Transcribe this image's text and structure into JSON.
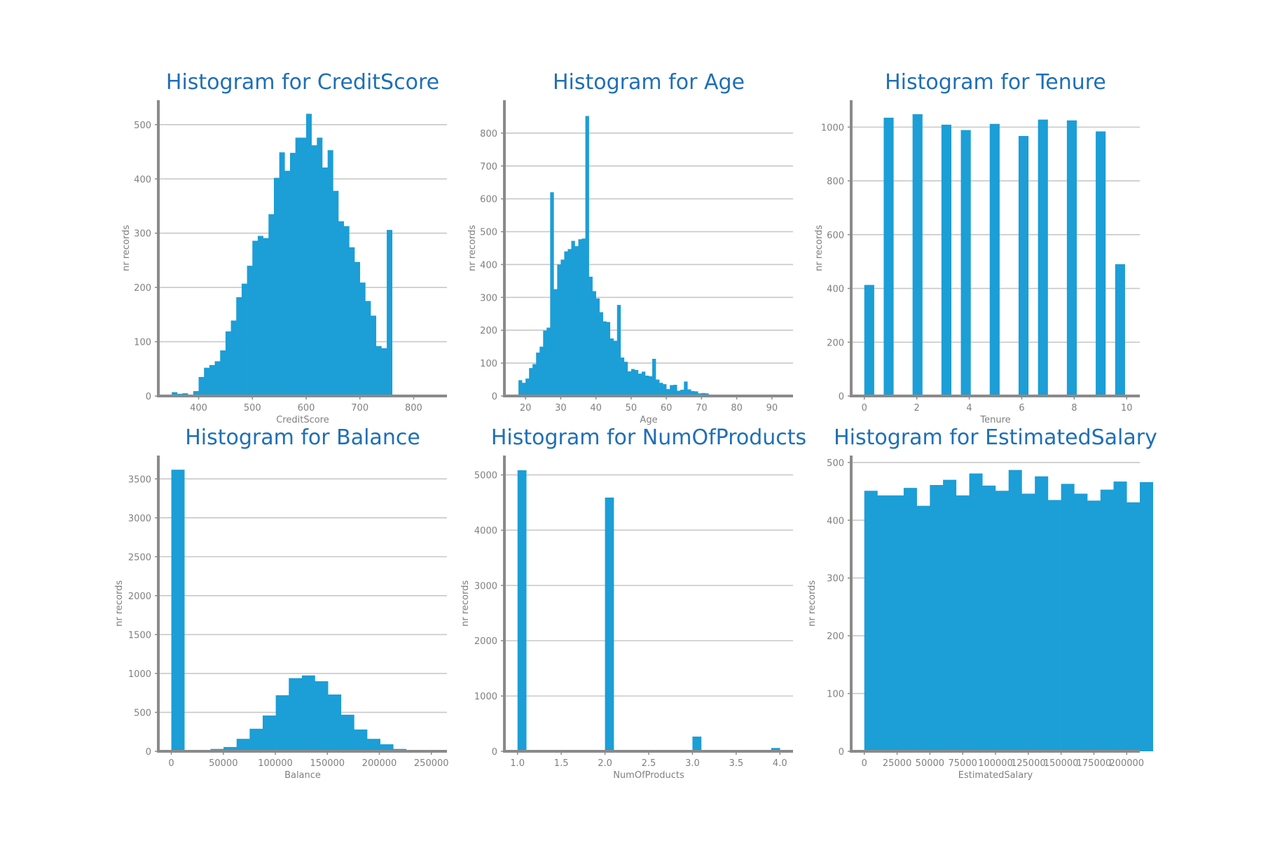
{
  "colors": {
    "bar": "#1c9ed6",
    "title": "#1f6fb6",
    "grid": "#c8c8c8",
    "axis": "#8a8a8a",
    "tick_text": "#808080"
  },
  "chart_data": [
    {
      "type": "bar",
      "title": "Histogram for CreditScore",
      "xlabel": "CreditScore",
      "ylabel": "nr records",
      "xlim": [
        325,
        862
      ],
      "ylim": [
        0,
        545
      ],
      "xticks": [
        400,
        500,
        600,
        700,
        800
      ],
      "yticks": [
        0,
        100,
        200,
        300,
        400,
        500
      ],
      "bins": {
        "start": 350,
        "width": 10,
        "values": [
          7,
          4,
          5,
          2,
          9,
          35,
          52,
          57,
          64,
          84,
          119,
          139,
          182,
          207,
          240,
          286,
          295,
          291,
          335,
          402,
          449,
          415,
          448,
          476,
          476,
          520,
          462,
          476,
          421,
          453,
          378,
          322,
          313,
          274,
          247,
          209,
          175,
          148,
          92,
          88,
          306
        ]
      },
      "grid": true
    },
    {
      "type": "bar",
      "title": "Histogram for Age",
      "xlabel": "Age",
      "ylabel": "nr records",
      "xlim": [
        14,
        96
      ],
      "ylim": [
        0,
        900
      ],
      "xticks": [
        20,
        30,
        40,
        50,
        60,
        70,
        80,
        90
      ],
      "yticks": [
        0,
        100,
        200,
        300,
        400,
        500,
        600,
        700,
        800
      ],
      "bins": {
        "start": 18,
        "width": 1,
        "values": [
          48,
          40,
          53,
          85,
          97,
          132,
          150,
          199,
          208,
          620,
          325,
          400,
          415,
          440,
          447,
          472,
          456,
          477,
          479,
          852,
          363,
          319,
          297,
          255,
          227,
          225,
          175,
          168,
          277,
          117,
          104,
          75,
          82,
          79,
          68,
          74,
          62,
          60,
          113,
          50,
          40,
          36,
          21,
          33,
          34,
          16,
          19,
          44,
          20,
          15,
          14,
          8,
          9,
          8,
          3,
          4,
          2,
          2,
          2,
          1,
          1,
          1,
          1,
          1,
          1,
          1,
          1,
          1,
          1,
          1,
          1,
          1,
          1,
          1,
          1
        ]
      },
      "grid": true
    },
    {
      "type": "bar",
      "title": "Histogram for Tenure",
      "xlabel": "Tenure",
      "ylabel": "nr records",
      "xlim": [
        -0.5,
        10.5
      ],
      "ylim": [
        0,
        1100
      ],
      "xticks": [
        0,
        2,
        4,
        6,
        8,
        10
      ],
      "yticks": [
        0,
        200,
        400,
        600,
        800,
        1000
      ],
      "bins": {
        "start": 0,
        "width": 0.37,
        "positions": [
          0,
          0.74,
          1.84,
          2.94,
          3.68,
          4.78,
          5.88,
          6.62,
          7.72,
          8.82,
          9.56
        ],
        "values": [
          413,
          1035,
          1048,
          1009,
          989,
          1012,
          967,
          1028,
          1025,
          984,
          490
        ]
      },
      "grid": true
    },
    {
      "type": "bar",
      "title": "Histogram for Balance",
      "xlabel": "Balance",
      "ylabel": "nr records",
      "xlim": [
        -12500,
        265000
      ],
      "ylim": [
        0,
        3800
      ],
      "xticks": [
        0,
        50000,
        100000,
        150000,
        200000,
        250000
      ],
      "yticks": [
        0,
        500,
        1000,
        1500,
        2000,
        2500,
        3000,
        3500
      ],
      "bins": {
        "start": 0,
        "width": 12550,
        "values": [
          3618,
          0,
          0,
          30,
          55,
          160,
          290,
          460,
          720,
          940,
          975,
          900,
          730,
          470,
          280,
          160,
          90,
          30,
          10,
          5
        ]
      },
      "grid": true
    },
    {
      "type": "bar",
      "title": "Histogram for NumOfProducts",
      "xlabel": "NumOfProducts",
      "ylabel": "nr records",
      "xlim": [
        0.85,
        4.15
      ],
      "ylim": [
        0,
        5350
      ],
      "xticks": [
        "1.0",
        "1.5",
        "2.0",
        "2.5",
        "3.0",
        "3.5",
        "4.0"
      ],
      "yticks": [
        0,
        1000,
        2000,
        3000,
        4000,
        5000
      ],
      "bins": {
        "start": 1,
        "width": 0.1,
        "positions": [
          1.0,
          2.0,
          3.0,
          3.9
        ],
        "values": [
          5084,
          4590,
          266,
          60
        ]
      },
      "grid": true
    },
    {
      "type": "bar",
      "title": "Histogram for EstimatedSalary",
      "xlabel": "EstimatedSalary",
      "ylabel": "nr records",
      "xlim": [
        -10000,
        210000
      ],
      "ylim": [
        0,
        512
      ],
      "xticks": [
        0,
        25000,
        50000,
        75000,
        100000,
        125000,
        150000,
        175000,
        200000
      ],
      "yticks": [
        0,
        100,
        200,
        300,
        400,
        500
      ],
      "bins": {
        "start": 0,
        "width": 10000,
        "values": [
          451,
          443,
          443,
          456,
          425,
          461,
          470,
          443,
          481,
          460,
          451,
          487,
          446,
          476,
          435,
          463,
          446,
          434,
          453,
          467,
          431,
          466
        ]
      },
      "grid": true
    }
  ]
}
